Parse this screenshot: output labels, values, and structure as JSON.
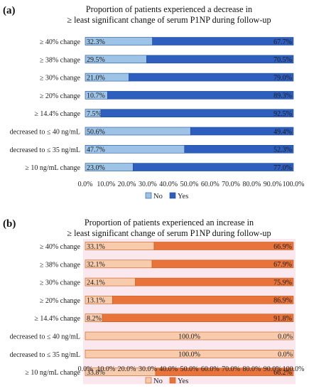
{
  "chart_data": [
    {
      "panel_label": "(a)",
      "type": "bar",
      "stacked": true,
      "orientation": "horizontal",
      "title_lines": [
        "Proportion of patients experienced a decrease in",
        "≥ least significant change of serum P1NP during follow-up"
      ],
      "categories": [
        "≥ 40% change",
        "≥ 38% change",
        "≥ 30% change",
        "≥ 20% change",
        "≥ 14.4% change",
        "decreased to ≤ 40 ng/mL",
        "decreased to ≤ 35 ng/mL",
        "≥ 10 ng/mL change"
      ],
      "series": [
        {
          "name": "No",
          "values": [
            32.3,
            29.5,
            21.0,
            10.7,
            7.5,
            50.6,
            47.7,
            23.0
          ],
          "color": "#9dc3e6"
        },
        {
          "name": "Yes",
          "values": [
            67.7,
            70.5,
            79.0,
            89.3,
            92.5,
            49.4,
            52.3,
            77.0
          ],
          "color": "#2e5fbf"
        }
      ],
      "value_labels": [
        [
          "32.3%",
          "29.5%",
          "21.0%",
          "10.7%",
          "7.5%",
          "50.6%",
          "47.7%",
          "23.0%"
        ],
        [
          "67.7%",
          "70.5%",
          "79.0%",
          "89.3%",
          "92.5%",
          "49.4%",
          "52.3%",
          "77.0%"
        ]
      ],
      "xlim": [
        0,
        100
      ],
      "xticks": [
        "0.0%",
        "10.0%",
        "20.0%",
        "30.0%",
        "40.0%",
        "50.0%",
        "60.0%",
        "70.0%",
        "80.0%",
        "90.0%",
        "100.0%"
      ],
      "legend": "bottom-center",
      "grid": false
    },
    {
      "panel_label": "(b)",
      "type": "bar",
      "stacked": true,
      "orientation": "horizontal",
      "title_lines": [
        "Proportion of patients experienced an increase in",
        "≥ least significant change of serum P1NP during follow-up"
      ],
      "categories": [
        "≥ 40% change",
        "≥ 38% change",
        "≥ 30% change",
        "≥ 20% change",
        "≥ 14.4% change",
        "decreased to ≤ 40 ng/mL",
        "decreased to ≤ 35 ng/mL",
        "≥ 10 ng/mL change"
      ],
      "series": [
        {
          "name": "No",
          "values": [
            33.1,
            32.1,
            24.1,
            13.1,
            8.2,
            100.0,
            100.0,
            33.8
          ],
          "color": "#f8cbad"
        },
        {
          "name": "Yes",
          "values": [
            66.9,
            67.9,
            75.9,
            86.9,
            91.8,
            0.0,
            0.0,
            66.2
          ],
          "color": "#e8743b"
        }
      ],
      "value_labels": [
        [
          "33.1%",
          "32.1%",
          "24.1%",
          "13.1%",
          "8.2%",
          "100.0%",
          "100.0%",
          "33.8%"
        ],
        [
          "66.9%",
          "67.9%",
          "75.9%",
          "86.9%",
          "91.8%",
          "0.0%",
          "0.0%",
          "66.2%"
        ]
      ],
      "xlim": [
        0,
        100
      ],
      "xticks": [
        "0.0%",
        "10.0%",
        "20.0%",
        "30.0%",
        "40.0%",
        "50.0%",
        "60.0%",
        "70.0%",
        "80.0%",
        "90.0%",
        "100.0%"
      ],
      "legend": "bottom-center",
      "grid": false
    }
  ]
}
